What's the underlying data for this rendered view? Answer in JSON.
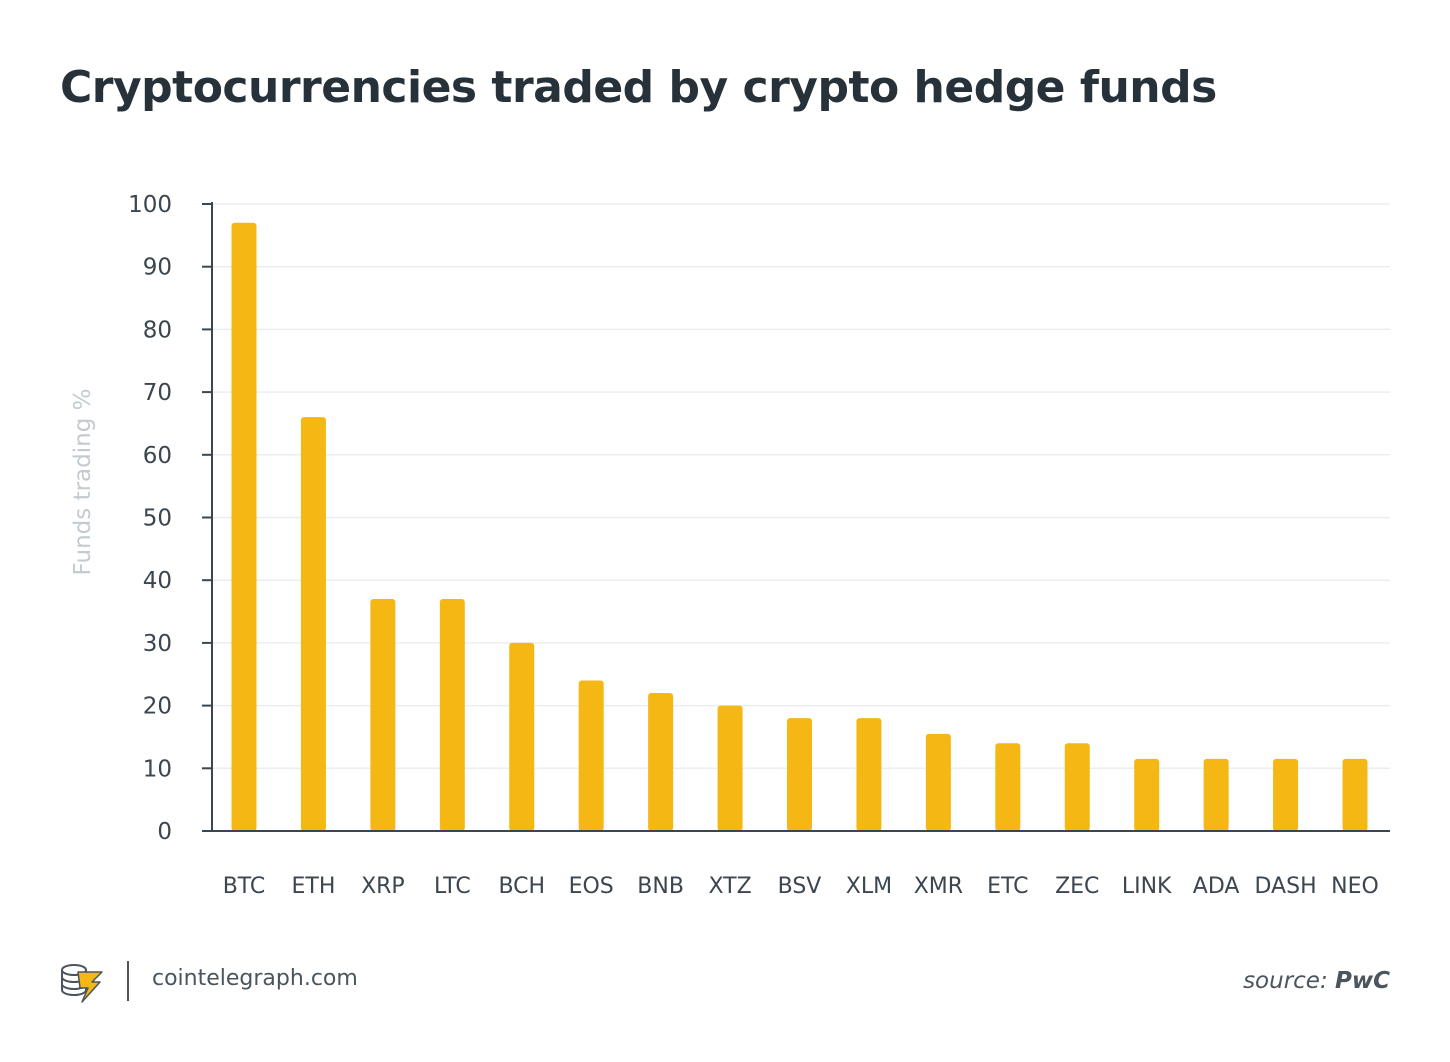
{
  "chart_data": {
    "type": "bar",
    "title": "Cryptocurrencies traded by crypto hedge funds",
    "ylabel": "Funds trading %",
    "xlabel": "",
    "categories": [
      "BTC",
      "ETH",
      "XRP",
      "LTC",
      "BCH",
      "EOS",
      "BNB",
      "XTZ",
      "BSV",
      "XLM",
      "XMR",
      "ETC",
      "ZEC",
      "LINK",
      "ADA",
      "DASH",
      "NEO"
    ],
    "values": [
      97,
      66,
      37,
      37,
      30,
      24,
      22,
      20,
      18,
      18,
      15.5,
      14,
      14,
      11.5,
      11.5,
      11.5,
      11.5
    ],
    "ylim": [
      0,
      100
    ],
    "yticks": [
      "0",
      "10",
      "20",
      "30",
      "40",
      "50",
      "60",
      "70",
      "80",
      "90",
      "100"
    ],
    "grid": true,
    "bar_color": "#f4b714"
  },
  "footer": {
    "site": "cointelegraph.com",
    "source_prefix": "source:",
    "source_name": "PwC",
    "logo_icon": "cointelegraph-coins-bolt-icon"
  }
}
